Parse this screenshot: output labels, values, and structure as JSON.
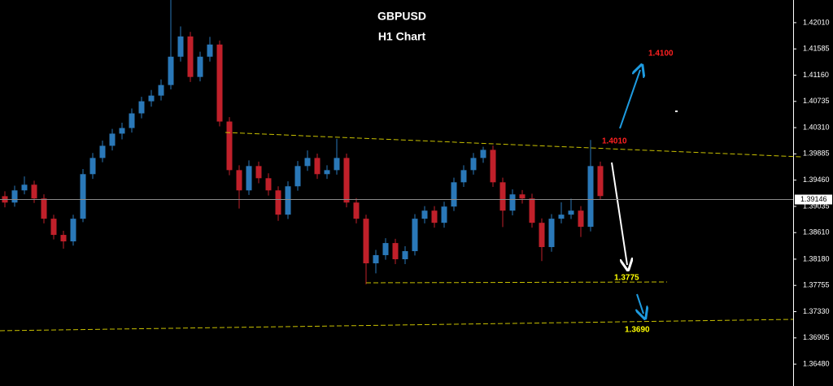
{
  "chart_data": {
    "type": "candlestick",
    "title": "GBPUSD",
    "subtitle": "H1 Chart",
    "up_color": "#2a78b8",
    "down_color": "#c0202a",
    "ylim": [
      1.36126,
      1.42377
    ],
    "yticks": [
      {
        "value": 1.4201,
        "label": "1.42010"
      },
      1.41585,
      {
        "value": 1.4116,
        "label": "1.41160"
      },
      1.40735,
      {
        "value": 1.4031,
        "label": "1.40310"
      },
      1.39885,
      {
        "value": 1.3946,
        "label": "1.39460"
      },
      1.39035,
      {
        "value": 1.3861,
        "label": "1.38610"
      },
      {
        "value": 1.3818,
        "label": "1.38180"
      },
      1.37755,
      {
        "value": 1.3733,
        "label": "1.37330"
      },
      1.36905,
      {
        "value": 1.3648,
        "label": "1.36480"
      }
    ],
    "current_price": 1.39146,
    "open": [
      1.392,
      1.39097,
      1.39294,
      1.39386,
      1.39163,
      1.38835,
      1.38573,
      1.38468,
      1.38835,
      1.39557,
      1.39819,
      1.40016,
      1.40213,
      1.40304,
      1.40541,
      1.40737,
      1.40829,
      1.41,
      1.41459,
      1.41787,
      1.41131,
      1.41459,
      1.41656,
      1.40409,
      1.39622,
      1.39294,
      1.39688,
      1.39491,
      1.39294,
      1.38901,
      1.3936,
      1.39688,
      1.39819,
      1.39557,
      1.39622,
      1.39819,
      1.39097,
      1.38835,
      1.38113,
      1.38245,
      1.38441,
      1.38179,
      1.3831,
      1.38835,
      1.38966,
      1.38769,
      1.39032,
      1.39425,
      1.39622,
      1.39819,
      1.3995,
      1.39425,
      1.38966,
      1.39229,
      1.39163,
      1.38769,
      1.38376,
      1.38835,
      1.38901,
      1.38966,
      1.38704,
      1.39688
    ],
    "high": [
      1.3928,
      1.3937,
      1.3952,
      1.3945,
      1.3923,
      1.389,
      1.3864,
      1.389,
      1.3964,
      1.399,
      1.401,
      1.4029,
      1.4039,
      1.4062,
      1.4081,
      1.4092,
      1.4109,
      1.42377,
      1.4195,
      1.4186,
      1.4154,
      1.4178,
      1.4172,
      1.4048,
      1.397,
      1.3978,
      1.3976,
      1.3957,
      1.3936,
      1.3944,
      1.3977,
      1.3994,
      1.3989,
      1.397,
      1.4013,
      1.3989,
      1.3917,
      1.389,
      1.3833,
      1.3852,
      1.3851,
      1.3839,
      1.3891,
      1.3904,
      1.3904,
      1.3911,
      1.395,
      1.397,
      1.399,
      1.4,
      1.4002,
      1.395,
      1.3931,
      1.393,
      1.3924,
      1.3884,
      1.3891,
      1.391,
      1.3916,
      1.3904,
      1.4011,
      1.3976
    ],
    "low": [
      1.3902,
      1.3903,
      1.3923,
      1.3909,
      1.3876,
      1.385,
      1.3835,
      1.384,
      1.3878,
      1.3948,
      1.3975,
      1.3994,
      1.4012,
      1.4023,
      1.4046,
      1.4065,
      1.4075,
      1.4093,
      1.4138,
      1.4105,
      1.4106,
      1.4138,
      1.4033,
      1.3954,
      1.39,
      1.3922,
      1.3941,
      1.3921,
      1.388,
      1.3883,
      1.3929,
      1.3961,
      1.3948,
      1.3948,
      1.3955,
      1.3902,
      1.3876,
      1.37772,
      1.3795,
      1.3817,
      1.381,
      1.381,
      1.3824,
      1.3876,
      1.3869,
      1.3869,
      1.3896,
      1.3935,
      1.3955,
      1.3974,
      1.3935,
      1.387,
      1.3889,
      1.3908,
      1.3869,
      1.3815,
      1.383,
      1.3876,
      1.3883,
      1.3854,
      1.3863,
      1.3914
    ],
    "close": [
      1.39097,
      1.39294,
      1.39386,
      1.39163,
      1.38835,
      1.38573,
      1.38468,
      1.38835,
      1.39557,
      1.39819,
      1.40016,
      1.40213,
      1.40304,
      1.40541,
      1.40737,
      1.40829,
      1.41,
      1.41459,
      1.41787,
      1.41131,
      1.41459,
      1.41656,
      1.40409,
      1.39622,
      1.39294,
      1.39688,
      1.39491,
      1.39294,
      1.38901,
      1.3936,
      1.39688,
      1.39819,
      1.39557,
      1.39622,
      1.39819,
      1.39097,
      1.38835,
      1.38113,
      1.38245,
      1.38441,
      1.38179,
      1.3831,
      1.38835,
      1.38966,
      1.38769,
      1.39032,
      1.39425,
      1.39622,
      1.39819,
      1.3995,
      1.39425,
      1.38966,
      1.39229,
      1.39163,
      1.38769,
      1.38376,
      1.38835,
      1.38901,
      1.38966,
      1.38704,
      1.39688,
      1.39202
    ],
    "annotations": [
      {
        "text": "1.4100",
        "color": "#ff2020"
      },
      {
        "text": "1.4010",
        "color": "#ff2020"
      },
      {
        "text": "1.3775",
        "color": "#ffff00"
      },
      {
        "text": "1.3690",
        "color": "#ffff00"
      }
    ]
  }
}
